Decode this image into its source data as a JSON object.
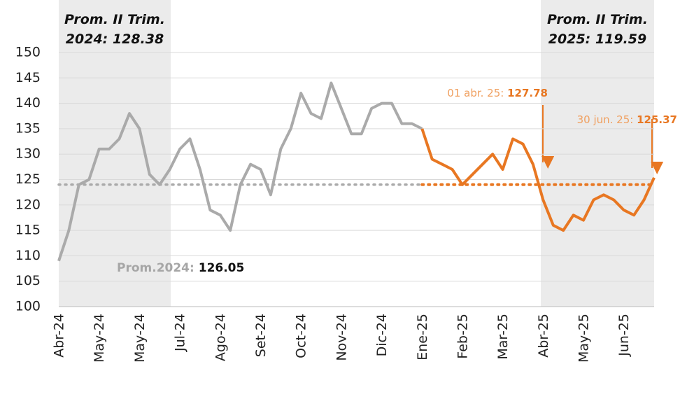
{
  "chart_data": {
    "type": "line",
    "categories": [
      "Abr-24",
      null,
      null,
      null,
      "May-24",
      null,
      null,
      null,
      "May-24",
      null,
      null,
      null,
      "Jul-24",
      null,
      null,
      null,
      "Ago-24",
      null,
      null,
      null,
      "Set-24",
      null,
      null,
      null,
      "Oct-24",
      null,
      null,
      null,
      "Nov-24",
      null,
      null,
      null,
      "Dic-24",
      null,
      null,
      null,
      "Ene-25",
      null,
      null,
      null,
      "Feb-25",
      null,
      null,
      null,
      "Mar-25",
      null,
      null,
      null,
      "Abr-25",
      null,
      null,
      null,
      "May-25",
      null,
      null,
      null,
      "Jun-25",
      null,
      null,
      null
    ],
    "series": [
      {
        "name": "2024",
        "color": "#aaaaaa",
        "values": [
          109,
          115,
          124,
          125,
          131,
          131,
          133,
          138,
          135,
          126,
          124,
          127,
          131,
          133,
          127,
          119,
          118,
          115,
          124,
          128,
          127,
          122,
          131,
          135,
          142,
          138,
          137,
          144,
          139,
          134,
          134,
          139,
          140,
          140,
          136,
          136,
          135,
          null,
          null,
          null,
          null,
          null,
          null,
          null,
          null,
          null,
          null,
          null,
          null,
          null,
          null,
          null,
          null,
          null,
          null,
          null,
          null,
          null,
          null,
          null
        ]
      },
      {
        "name": "2025",
        "color": "#e87722",
        "values": [
          null,
          null,
          null,
          null,
          null,
          null,
          null,
          null,
          null,
          null,
          null,
          null,
          null,
          null,
          null,
          null,
          null,
          null,
          null,
          null,
          null,
          null,
          null,
          null,
          null,
          null,
          null,
          null,
          null,
          null,
          null,
          null,
          null,
          null,
          null,
          null,
          135,
          129,
          128,
          127,
          124,
          126,
          128,
          130,
          127,
          133,
          132,
          128,
          121,
          116,
          115,
          118,
          117,
          121,
          122,
          121,
          119,
          118,
          121,
          125.37
        ]
      }
    ],
    "reference_line": 124,
    "ylim": [
      100,
      150
    ],
    "yticks": [
      100,
      105,
      110,
      115,
      120,
      125,
      130,
      135,
      140,
      145,
      150
    ],
    "grid": true,
    "annotations": [
      {
        "lines": [
          "Prom. II Trim.",
          "2024:"
        ],
        "value": 128.38
      },
      {
        "lines": [
          "Prom. II Trim.",
          "2025:"
        ],
        "value": 119.59
      },
      {
        "lines": [
          "Prom.2024:"
        ],
        "value": 126.05
      },
      {
        "lines": [
          "01 abr. 25:"
        ],
        "value": 127.78
      },
      {
        "lines": [
          "30 jun. 25:"
        ],
        "value": 125.37
      }
    ]
  }
}
